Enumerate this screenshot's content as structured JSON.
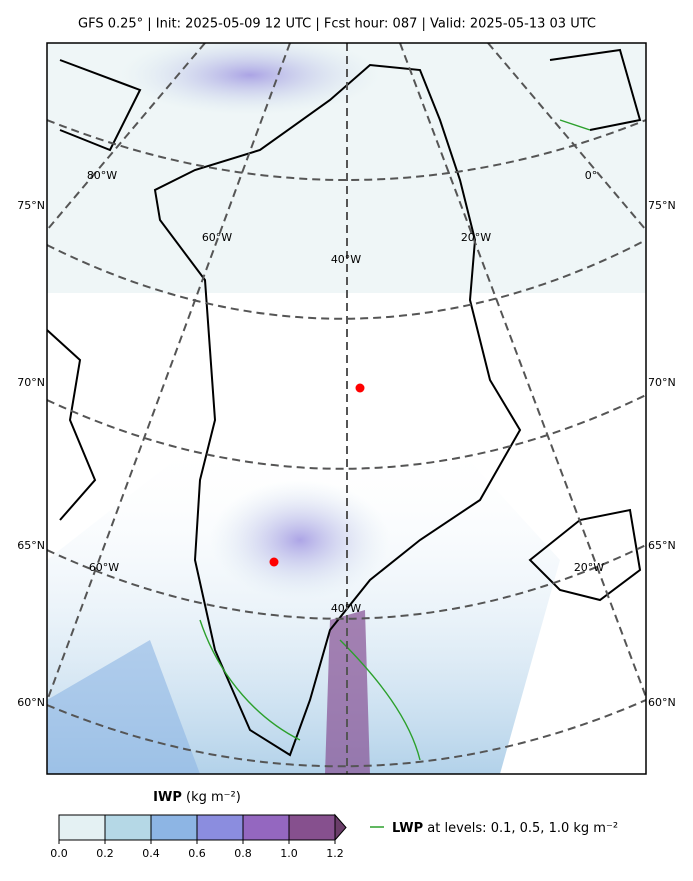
{
  "title": "GFS 0.25° | Init: 2025-05-09 12 UTC | Fcst hour: 087 | Valid: 2025-05-13 03 UTC",
  "map": {
    "lat_labels": [
      "75°N",
      "70°N",
      "65°N",
      "60°N"
    ],
    "lon_labels_top": [
      "80°W",
      "60°W",
      "40°W",
      "20°W",
      "0°"
    ],
    "lon_labels_bottom": [
      "60°W",
      "40°W",
      "20°W"
    ]
  },
  "colorbar": {
    "name": "IWP",
    "unit": "(kg m⁻²)",
    "range": [
      0,
      1.2
    ],
    "ticks": [
      {
        "value": 0,
        "label": "0.0"
      },
      0.2,
      0.4,
      0.6,
      0.8,
      {
        "value": 1,
        "label": "1.0"
      },
      1.2
    ],
    "colors": [
      "#e4f1f3",
      "#b5d8e6",
      "#8db5e4",
      "#8b8ddf",
      "#9467c0",
      "#86508e"
    ],
    "extend_color": "#6a3d69"
  },
  "legend": {
    "name": "LWP",
    "text": "at levels: 0.1, 0.5, 1.0  kg m⁻²",
    "color": "#2ca02c"
  }
}
